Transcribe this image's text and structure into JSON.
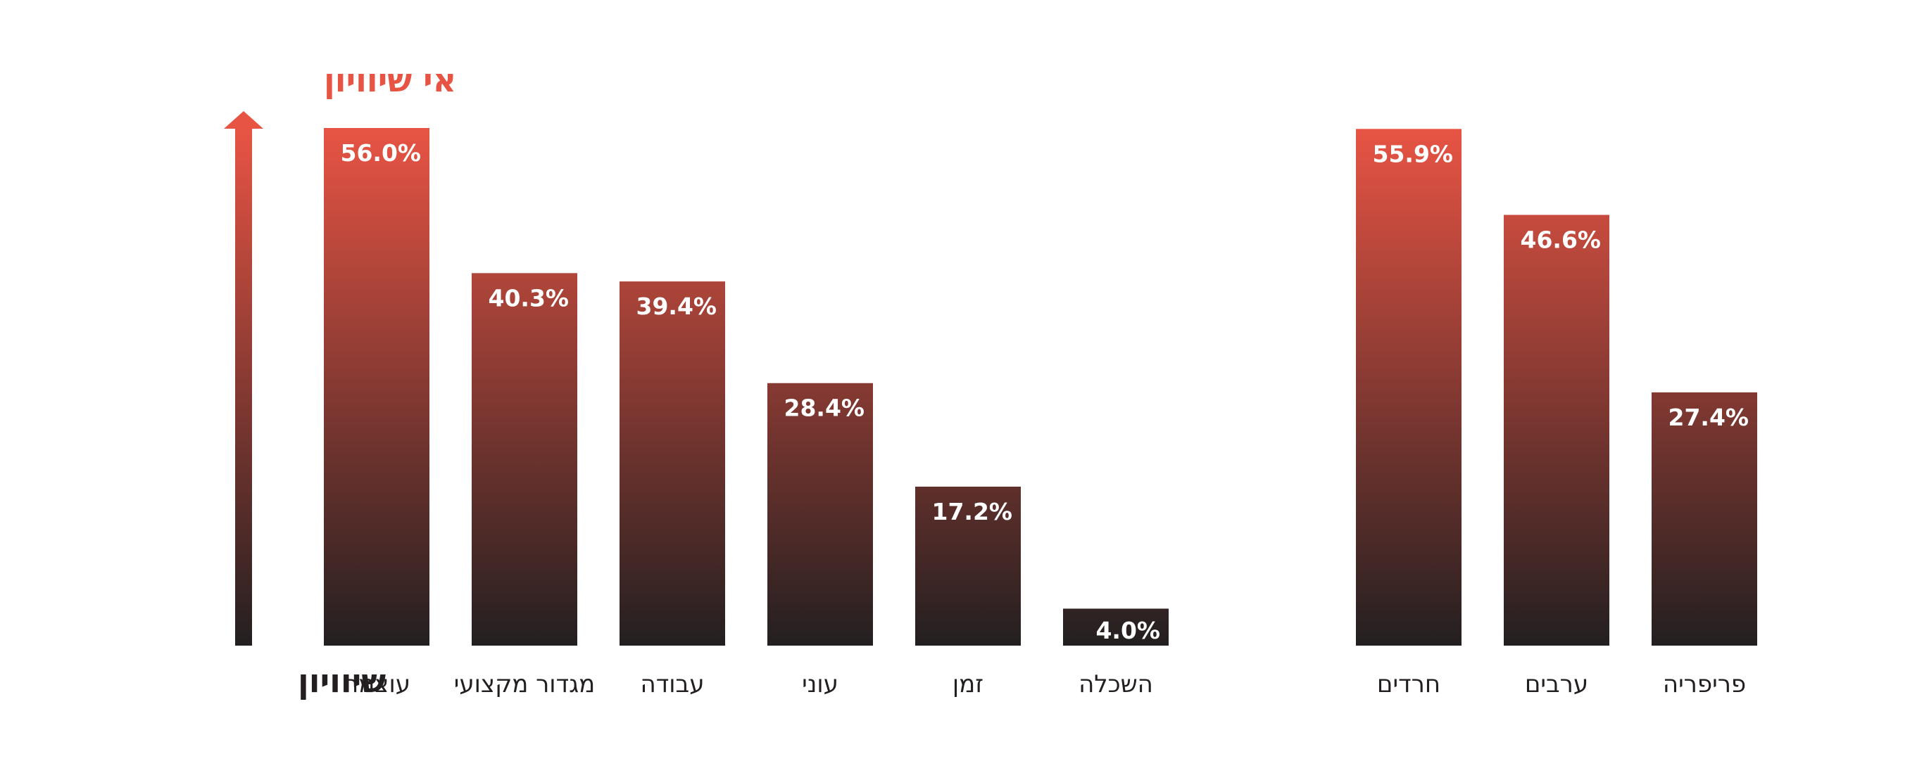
{
  "colors": {
    "bar_top": "#e85444",
    "bar_bottom": "#231f20",
    "value_text": "#ffffff",
    "label_text": "#231f20",
    "scale_top_text": "#e85444"
  },
  "scale": {
    "top_label": "אי שיוויון",
    "bottom_label": "שיוויון",
    "arrow_icon": "arrow-up-icon"
  },
  "chart_data": [
    {
      "type": "bar",
      "categories": [
        "עוצמה",
        "מגדור מקצועי",
        "עבודה",
        "עוני",
        "זמן",
        "השכלה"
      ],
      "values": [
        56.0,
        40.3,
        39.4,
        28.4,
        17.2,
        4.0
      ],
      "value_labels": [
        "56.0%",
        "40.3%",
        "39.4%",
        "28.4%",
        "17.2%",
        "4.0%"
      ],
      "ylim": [
        0,
        56
      ],
      "grid": false,
      "legend": "none"
    },
    {
      "type": "bar",
      "categories": [
        "חרדים",
        "ערבים",
        "פריפריה"
      ],
      "values": [
        55.9,
        46.6,
        27.4
      ],
      "value_labels": [
        "55.9%",
        "46.6%",
        "27.4%"
      ],
      "ylim": [
        0,
        56
      ],
      "grid": false,
      "legend": "none"
    }
  ]
}
